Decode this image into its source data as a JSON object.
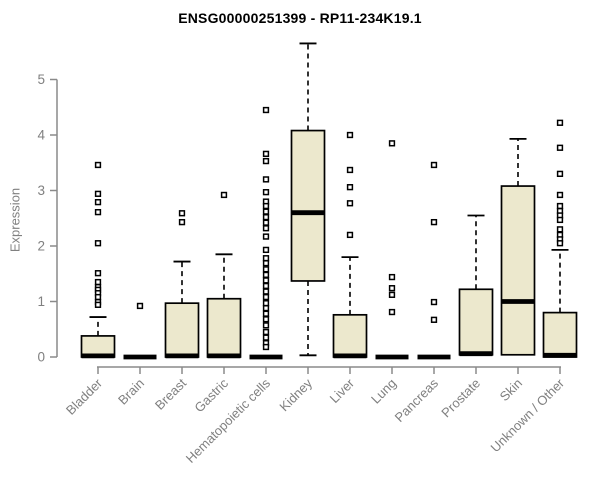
{
  "colors": {
    "box_fill": "#ece8cd",
    "box_stroke": "#000000",
    "median_stroke": "#000000",
    "whisker_stroke": "#000000",
    "outlier_stroke": "#000000",
    "outlier_fill": "#ffffff",
    "axis_line": "#8a8a8a",
    "tick_text": "#808080",
    "title_text": "#000000"
  },
  "chart_data": {
    "type": "boxplot",
    "title": "ENSG00000251399 - RP11-234K19.1",
    "ylabel": "Expression",
    "xlabel": "",
    "ylim": [
      0,
      5.8
    ],
    "yticks": [
      0,
      1,
      2,
      3,
      4,
      5
    ],
    "grid": false,
    "legend": "none",
    "categories": [
      "Bladder",
      "Brain",
      "Breast",
      "Gastric",
      "Hematopoietic cells",
      "Kidney",
      "Liver",
      "Lung",
      "Pancreas",
      "Prostate",
      "Skin",
      "Unknown / Other"
    ],
    "series": [
      {
        "name": "Bladder",
        "whisker_low": 0,
        "q1": 0,
        "median": 0.02,
        "q3": 0.38,
        "whisker_high": 0.72,
        "outliers": [
          3.46,
          2.94,
          2.79,
          2.61,
          2.05,
          1.51,
          1.35,
          1.26,
          1.21,
          1.15,
          1.08,
          0.99,
          0.94
        ]
      },
      {
        "name": "Brain",
        "whisker_low": 0,
        "q1": 0,
        "median": 0,
        "q3": 0,
        "whisker_high": 0,
        "outliers": [
          0.92
        ]
      },
      {
        "name": "Breast",
        "whisker_low": 0,
        "q1": 0,
        "median": 0.02,
        "q3": 0.97,
        "whisker_high": 1.72,
        "outliers": [
          2.59,
          2.43
        ]
      },
      {
        "name": "Gastric",
        "whisker_low": 0,
        "q1": 0,
        "median": 0.02,
        "q3": 1.05,
        "whisker_high": 1.85,
        "outliers": [
          2.92
        ]
      },
      {
        "name": "Hematopoietic cells",
        "whisker_low": 0,
        "q1": 0,
        "median": 0,
        "q3": 0,
        "whisker_high": 0,
        "outliers": [
          4.45,
          3.66,
          3.53,
          3.2,
          2.97,
          2.8,
          2.72,
          2.62,
          2.52,
          2.42,
          2.32,
          2.17,
          1.93,
          1.78,
          1.69,
          1.58,
          1.48,
          1.38,
          1.28,
          1.18,
          1.08,
          0.97,
          0.88,
          0.78,
          0.68,
          0.57,
          0.45,
          0.35,
          0.25,
          0.18
        ]
      },
      {
        "name": "Kidney",
        "whisker_low": 0.03,
        "q1": 1.37,
        "median": 2.6,
        "q3": 4.08,
        "whisker_high": 5.65,
        "outliers": []
      },
      {
        "name": "Liver",
        "whisker_low": 0,
        "q1": 0,
        "median": 0.02,
        "q3": 0.76,
        "whisker_high": 1.8,
        "outliers": [
          4.0,
          3.37,
          3.06,
          2.77,
          2.2
        ]
      },
      {
        "name": "Lung",
        "whisker_low": 0,
        "q1": 0,
        "median": 0,
        "q3": 0,
        "whisker_high": 0,
        "outliers": [
          3.85,
          1.44,
          1.24,
          1.12,
          0.81
        ]
      },
      {
        "name": "Pancreas",
        "whisker_low": 0,
        "q1": 0,
        "median": 0,
        "q3": 0,
        "whisker_high": 0,
        "outliers": [
          3.46,
          2.43,
          0.99,
          0.67
        ]
      },
      {
        "name": "Prostate",
        "whisker_low": 0.04,
        "q1": 0.04,
        "median": 0.06,
        "q3": 1.22,
        "whisker_high": 2.55,
        "outliers": []
      },
      {
        "name": "Skin",
        "whisker_low": 0.04,
        "q1": 0.04,
        "median": 1.0,
        "q3": 3.08,
        "whisker_high": 3.93,
        "outliers": []
      },
      {
        "name": "Unknown / Other",
        "whisker_low": 0,
        "q1": 0,
        "median": 0.03,
        "q3": 0.8,
        "whisker_high": 1.93,
        "outliers": [
          4.22,
          3.77,
          3.3,
          2.92,
          2.72,
          2.63,
          2.55,
          2.47,
          2.3,
          2.2,
          2.12,
          2.05
        ]
      }
    ]
  }
}
